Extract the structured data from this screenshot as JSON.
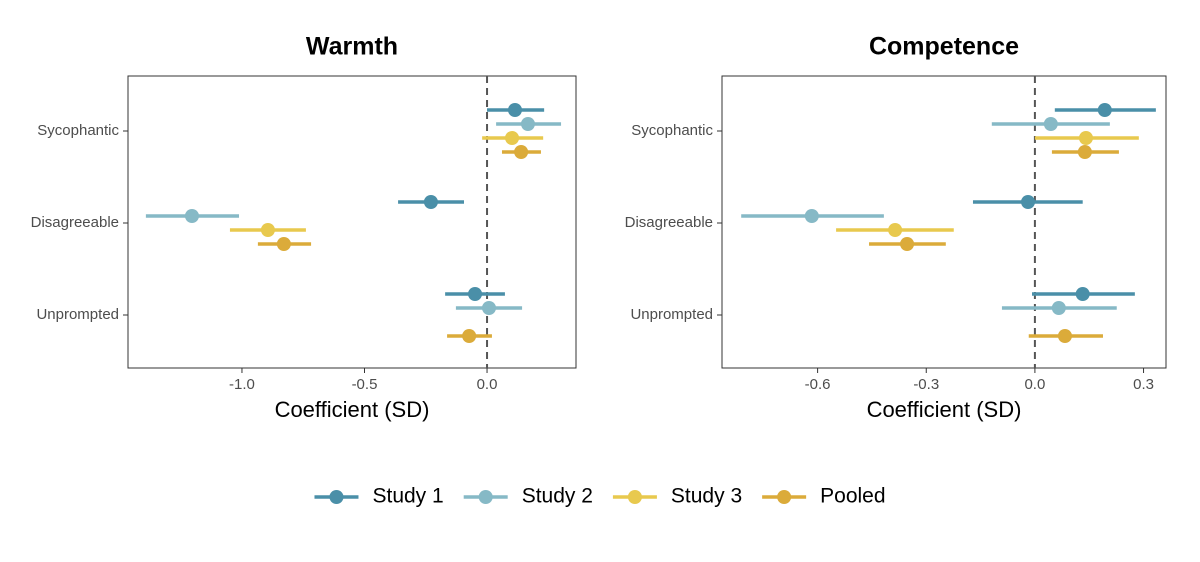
{
  "chart_data": [
    {
      "type": "coefplot",
      "title": "Warmth",
      "xlabel": "Coefficient (SD)",
      "categories": [
        "Sycophantic",
        "Disagreeable",
        "Unprompted"
      ],
      "xlim": [
        -1.465,
        0.363
      ],
      "xticks": [
        {
          "value": -1,
          "label": "-1.0"
        },
        -0.5,
        {
          "value": 0,
          "label": "0.0"
        }
      ],
      "reference_line": 0,
      "series": [
        {
          "name": "Study 1",
          "color": "#4a8fa8",
          "values": [
            0.114,
            -0.229,
            -0.049
          ],
          "lower": [
            0.0,
            -0.363,
            -0.171
          ],
          "upper": [
            0.233,
            -0.094,
            0.073
          ]
        },
        {
          "name": "Study 2",
          "color": "#86b9c6",
          "values": [
            0.167,
            -1.204,
            0.008
          ],
          "lower": [
            0.037,
            -1.392,
            -0.127
          ],
          "upper": [
            0.302,
            -1.012,
            0.143
          ]
        },
        {
          "name": "Study 3",
          "color": "#e8c94e",
          "values": [
            0.102,
            -0.894,
            null
          ],
          "lower": [
            -0.02,
            -1.049,
            null
          ],
          "upper": [
            0.229,
            -0.739,
            null
          ]
        },
        {
          "name": "Pooled",
          "color": "#dbab3a",
          "values": [
            0.139,
            -0.829,
            -0.073
          ],
          "lower": [
            0.061,
            -0.935,
            -0.163
          ],
          "upper": [
            0.22,
            -0.718,
            0.02
          ]
        }
      ]
    },
    {
      "type": "coefplot",
      "title": "Competence",
      "xlabel": "Coefficient (SD)",
      "categories": [
        "Sycophantic",
        "Disagreeable",
        "Unprompted"
      ],
      "xlim": [
        -0.864,
        0.362
      ],
      "xticks": [
        -0.6,
        -0.3,
        {
          "value": 0,
          "label": "0.0"
        },
        0.3
      ],
      "reference_line": 0,
      "series": [
        {
          "name": "Study 1",
          "color": "#4a8fa8",
          "values": [
            0.193,
            -0.019,
            0.132
          ],
          "lower": [
            0.055,
            -0.171,
            -0.008
          ],
          "upper": [
            0.334,
            0.132,
            0.276
          ]
        },
        {
          "name": "Study 2",
          "color": "#86b9c6",
          "values": [
            0.044,
            -0.616,
            0.066
          ],
          "lower": [
            -0.119,
            -0.811,
            -0.091
          ],
          "upper": [
            0.207,
            -0.417,
            0.226
          ]
        },
        {
          "name": "Study 3",
          "color": "#e8c94e",
          "values": [
            0.141,
            -0.386,
            null
          ],
          "lower": [
            0.0,
            -0.549,
            null
          ],
          "upper": [
            0.287,
            -0.224,
            null
          ]
        },
        {
          "name": "Pooled",
          "color": "#dbab3a",
          "values": [
            0.138,
            -0.353,
            0.083
          ],
          "lower": [
            0.047,
            -0.458,
            -0.017
          ],
          "upper": [
            0.232,
            -0.246,
            0.188
          ]
        }
      ]
    }
  ]
}
